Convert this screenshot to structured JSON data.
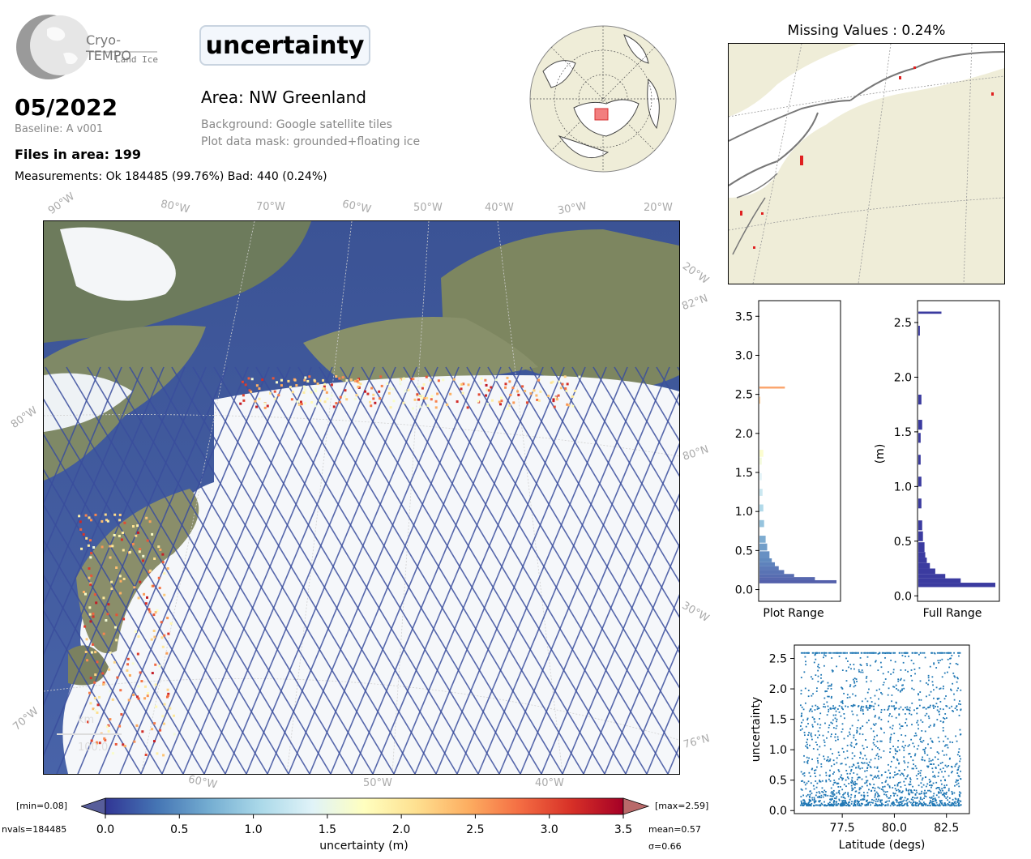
{
  "logo": {
    "name": "Cryo-TEMPO",
    "sub": "Land Ice"
  },
  "parameter": "uncertainty",
  "date": "05/2022",
  "baseline": "Baseline: A v001",
  "files": "Files in area: 199",
  "measurements": "Measurements: Ok 184485 (99.76%) Bad: 440 (0.24%)",
  "area": "Area: NW Greenland",
  "background": "Background: Google satellite tiles",
  "mask": "Plot data mask: grounded+floating ice",
  "map": {
    "lon_labels_top": [
      "90°W",
      "80°W",
      "70°W",
      "60°W",
      "50°W",
      "40°W",
      "30°W",
      "20°W"
    ],
    "lat_labels_right": [
      "20°W",
      "82°N",
      "80°N",
      "30°W",
      "76°N"
    ],
    "lat_labels_left": [
      "80°W",
      "70°W"
    ],
    "lon_labels_bottom": [
      "60°W",
      "50°W",
      "40°W"
    ],
    "scale_unit": "km",
    "scale_value": "100.0"
  },
  "missing": {
    "title": "Missing Values : 0.24%"
  },
  "colorbar": {
    "min_label": "[min=0.08]",
    "max_label": "[max=2.59]",
    "nvals": "nvals=184485",
    "mean": "mean=0.57",
    "sigma": "σ=0.66",
    "label": "uncertainty (m)",
    "ticks": [
      "0.0",
      "0.5",
      "1.0",
      "1.5",
      "2.0",
      "2.5",
      "3.0",
      "3.5"
    ],
    "stops": [
      "#313695",
      "#4575b4",
      "#74add1",
      "#abd9e9",
      "#e0f3f8",
      "#ffffbf",
      "#fee090",
      "#fdae61",
      "#f46d43",
      "#d73027",
      "#a50026"
    ]
  },
  "hist_plot_range": {
    "xlabel": "Plot Range",
    "yticks": [
      "0.0",
      "0.5",
      "1.0",
      "1.5",
      "2.0",
      "2.5",
      "3.0",
      "3.5"
    ]
  },
  "hist_full_range": {
    "xlabel": "Full Range",
    "ylabel": "(m)",
    "yticks": [
      "0.0",
      "0.5",
      "1.0",
      "1.5",
      "2.0",
      "2.5"
    ]
  },
  "chart_data": [
    {
      "type": "bar",
      "orientation": "horizontal",
      "xlabel": "Plot Range",
      "ylim": [
        -0.15,
        3.7
      ],
      "bins": [
        0.08,
        0.12,
        0.16,
        0.2,
        0.25,
        0.3,
        0.35,
        0.4,
        0.5,
        0.6,
        0.8,
        1.0,
        1.2,
        1.4,
        1.6,
        1.7,
        2.38,
        2.58
      ],
      "values": [
        100,
        72,
        45,
        32,
        25,
        20,
        16,
        13,
        10,
        8,
        6,
        5,
        4,
        3,
        3,
        5,
        1,
        33
      ]
    },
    {
      "type": "bar",
      "orientation": "horizontal",
      "xlabel": "Full Range",
      "ylabel": "(m)",
      "ylim": [
        -0.05,
        2.7
      ],
      "bins": [
        0.08,
        0.12,
        0.16,
        0.2,
        0.25,
        0.3,
        0.35,
        0.4,
        0.5,
        0.6,
        0.8,
        1.0,
        1.2,
        1.4,
        1.52,
        1.75,
        2.38,
        2.58
      ],
      "values": [
        100,
        55,
        35,
        22,
        15,
        11,
        9,
        8,
        6,
        5,
        4,
        4,
        3,
        3,
        5,
        4,
        2,
        30
      ]
    },
    {
      "type": "scatter",
      "xlabel": "Latitude (degs)",
      "ylabel": "uncertainty",
      "xlim": [
        75.2,
        83.6
      ],
      "ylim": [
        -0.05,
        2.72
      ],
      "xticks": [
        "77.5",
        "80.0",
        "82.5"
      ],
      "yticks": [
        "0.0",
        "0.5",
        "1.0",
        "1.5",
        "2.0",
        "2.5"
      ],
      "x_range": [
        75.5,
        83.2
      ],
      "y_range": [
        0.08,
        2.59
      ],
      "color": "#1f77b4"
    }
  ]
}
